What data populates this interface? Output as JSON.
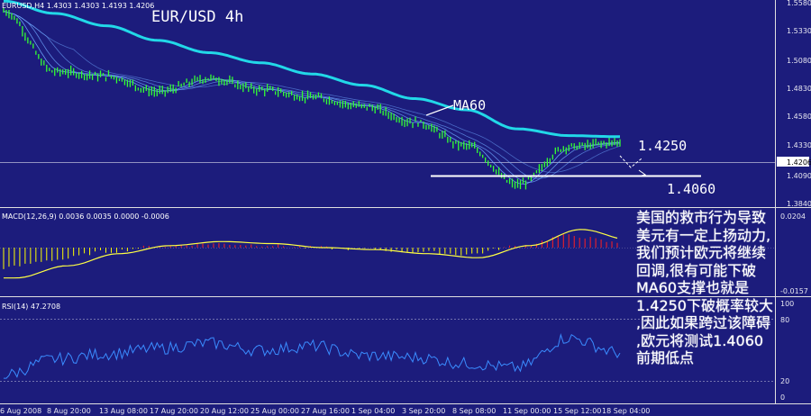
{
  "title": "EUR/USD 4h",
  "main_header": "EURUSD,H4  1.4303 1.4303 1.4193 1.4206",
  "macd_header": "MACD(12,26,9) 0.0036 0.0035 0.0000 -0.0006",
  "rsi_header": "RSI(14) 47.2708",
  "price_axis_labels": [
    "1.5580",
    "1.5330",
    "1.5080",
    "1.4830",
    "1.4580",
    "1.4330",
    "1.4206",
    "1.4090",
    "1.3840"
  ],
  "macd_axis_labels": [
    "0.0204",
    "-0.0157"
  ],
  "rsi_axis_labels": [
    "100",
    "80",
    "20",
    "0"
  ],
  "x_axis_labels": [
    "6 Aug 2008",
    "8 Aug 20:00",
    "13 Aug 08:00",
    "17 Aug 20:00",
    "20 Aug 12:00",
    "25 Aug 00:00",
    "27 Aug 16:00",
    "1 Sep 04:00",
    "3 Sep 20:00",
    "8 Sep 08:00",
    "11 Sep 00:00",
    "15 Sep 12:00",
    "18 Sep 04:00"
  ],
  "annotations": {
    "ma60_label": "MA60",
    "resistance_label": "1.4250",
    "support_label": "1.4060"
  },
  "note_lines": [
    "美国的救市行为导致",
    "美元有一定上扬动力,",
    "我们预计欧元将继续",
    "回调,很有可能下破",
    "MA60支撑也就是",
    "1.4250下破概率较大",
    ",因此如果跨过该障碍",
    ",欧元将测试1.4060",
    "前期低点"
  ],
  "colors": {
    "background": "#1c1c7c",
    "candles": "#33ff33",
    "ma60": "#22d8e8",
    "short_mas": "#6fa8ff",
    "macd_up": "#ff2020",
    "macd_down": "#ffff00",
    "signal": "#ffff44",
    "rsi": "#3a8cff",
    "text": "#ffffff"
  },
  "chart_data": [
    {
      "type": "line",
      "title": "EUR/USD 4h",
      "x": [
        "6 Aug 2008",
        "8 Aug 20:00",
        "13 Aug 08:00",
        "17 Aug 20:00",
        "20 Aug 12:00",
        "25 Aug 00:00",
        "27 Aug 16:00",
        "1 Sep 04:00",
        "3 Sep 20:00",
        "8 Sep 08:00",
        "11 Sep 00:00",
        "15 Sep 12:00",
        "18 Sep 04:00"
      ],
      "series": [
        {
          "name": "",
          "values": [
            1.55,
            1.496,
            1.492,
            1.478,
            1.49,
            1.48,
            1.473,
            1.465,
            1.451,
            1.43,
            1.395,
            1.429,
            1.433
          ]
        },
        {
          "name": "MA60",
          "values": [
            1.559,
            1.548,
            1.537,
            1.524,
            1.513,
            1.504,
            1.494,
            1.484,
            1.472,
            1.462,
            1.445,
            1.439,
            1.438
          ]
        }
      ],
      "ylim": [
        1.38,
        1.56
      ]
    },
    {
      "type": "bar",
      "title": "MACD(12,26,9)",
      "x": [
        "6 Aug 2008",
        "8 Aug 20:00",
        "13 Aug 08:00",
        "17 Aug 20:00",
        "20 Aug 12:00",
        "25 Aug 00:00",
        "27 Aug 16:00",
        "1 Sep 04:00",
        "3 Sep 20:00",
        "8 Sep 08:00",
        "11 Sep 00:00",
        "15 Sep 12:00",
        "18 Sep 04:00"
      ],
      "values": [
        -0.015,
        -0.009,
        -0.003,
        0.001,
        0.003,
        0.002,
        0.0,
        -0.001,
        -0.003,
        -0.005,
        0.001,
        0.009,
        0.0036
      ],
      "ylim": [
        -0.0157,
        0.0204
      ]
    },
    {
      "type": "line",
      "title": "RSI(14)",
      "x": [
        "6 Aug 2008",
        "8 Aug 20:00",
        "13 Aug 08:00",
        "17 Aug 20:00",
        "20 Aug 12:00",
        "25 Aug 00:00",
        "27 Aug 16:00",
        "1 Sep 04:00",
        "3 Sep 20:00",
        "8 Sep 08:00",
        "11 Sep 00:00",
        "15 Sep 12:00",
        "18 Sep 04:00"
      ],
      "values": [
        22,
        40,
        46,
        52,
        58,
        50,
        55,
        44,
        42,
        35,
        30,
        64,
        47.27
      ],
      "ylim": [
        0,
        100
      ]
    }
  ]
}
